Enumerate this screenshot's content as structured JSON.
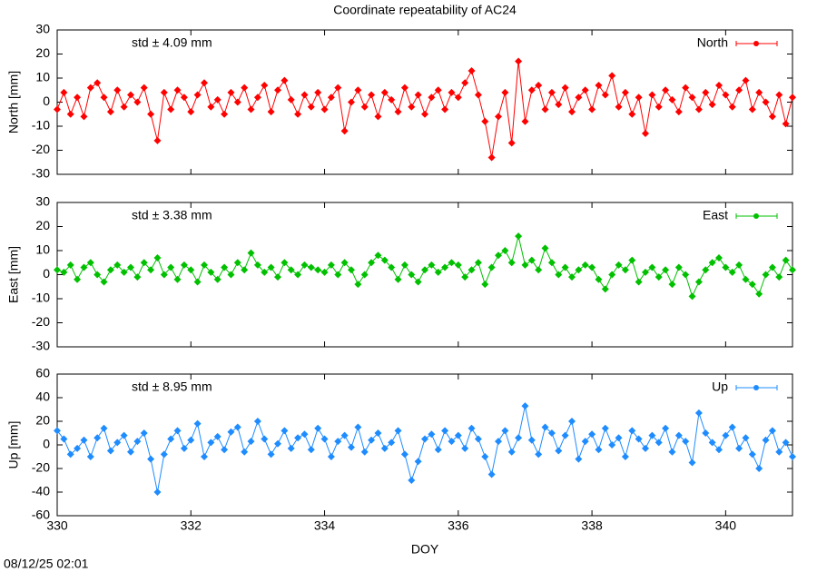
{
  "title": "Coordinate repeatability of AC24",
  "timestamp": "08/12/25 02:01",
  "chart_data": [
    {
      "type": "scatter",
      "ylabel": "North [mm]",
      "annotation": "std ± 4.09 mm",
      "color": "#ff0000",
      "xlim": [
        330,
        341
      ],
      "xticks": [
        330,
        332,
        334,
        336,
        338,
        340
      ],
      "ylim": [
        -30,
        30
      ],
      "yticks": [
        -30,
        -20,
        -10,
        0,
        10,
        20,
        30
      ],
      "legend": "top-right",
      "x": [
        330,
        330.1,
        330.2,
        330.3,
        330.4,
        330.5,
        330.6,
        330.7,
        330.8,
        330.9,
        331,
        331.1,
        331.2,
        331.3,
        331.4,
        331.5,
        331.6,
        331.7,
        331.8,
        331.9,
        332,
        332.1,
        332.2,
        332.3,
        332.4,
        332.5,
        332.6,
        332.7,
        332.8,
        332.9,
        333,
        333.1,
        333.2,
        333.3,
        333.4,
        333.5,
        333.6,
        333.7,
        333.8,
        333.9,
        334,
        334.1,
        334.2,
        334.3,
        334.4,
        334.5,
        334.6,
        334.7,
        334.8,
        334.9,
        335,
        335.1,
        335.2,
        335.3,
        335.4,
        335.5,
        335.6,
        335.7,
        335.8,
        335.9,
        336,
        336.1,
        336.2,
        336.3,
        336.4,
        336.5,
        336.6,
        336.7,
        336.8,
        336.9,
        337,
        337.1,
        337.2,
        337.3,
        337.4,
        337.5,
        337.6,
        337.7,
        337.8,
        337.9,
        338,
        338.1,
        338.2,
        338.3,
        338.4,
        338.5,
        338.6,
        338.7,
        338.8,
        338.9,
        339,
        339.1,
        339.2,
        339.3,
        339.4,
        339.5,
        339.6,
        339.7,
        339.8,
        339.9,
        340,
        340.1,
        340.2,
        340.3,
        340.4,
        340.5,
        340.6,
        340.7,
        340.8,
        340.9,
        341
      ],
      "series": [
        {
          "name": "North",
          "color": "#ff0000",
          "values": [
            -3,
            4,
            -5,
            2,
            -6,
            6,
            8,
            2,
            -4,
            5,
            -2,
            3,
            0,
            6,
            -5,
            -16,
            4,
            -3,
            5,
            2,
            -4,
            3,
            8,
            -2,
            1,
            -5,
            4,
            0,
            6,
            -3,
            2,
            7,
            -4,
            5,
            9,
            1,
            -5,
            3,
            -2,
            4,
            -3,
            2,
            6,
            -12,
            0,
            5,
            -2,
            3,
            -6,
            4,
            1,
            -4,
            6,
            -2,
            3,
            -5,
            2,
            5,
            -3,
            4,
            2,
            8,
            13,
            3,
            -8,
            -23,
            -6,
            4,
            -17,
            17,
            -8,
            5,
            7,
            -3,
            4,
            -1,
            6,
            -4,
            2,
            5,
            -3,
            7,
            3,
            11,
            -2,
            4,
            -5,
            2,
            -13,
            3,
            -2,
            5,
            1,
            -4,
            6,
            2,
            -3,
            4,
            -1,
            7,
            3,
            -2,
            5,
            9,
            -3,
            4,
            0,
            -6,
            3,
            -9,
            2
          ]
        }
      ]
    },
    {
      "type": "scatter",
      "ylabel": "East [mm]",
      "annotation": "std ± 3.38 mm",
      "color": "#00c000",
      "xlim": [
        330,
        341
      ],
      "xticks": [
        330,
        332,
        334,
        336,
        338,
        340
      ],
      "ylim": [
        -30,
        30
      ],
      "yticks": [
        -30,
        -20,
        -10,
        0,
        10,
        20,
        30
      ],
      "legend": "top-right",
      "x": [
        330,
        330.1,
        330.2,
        330.3,
        330.4,
        330.5,
        330.6,
        330.7,
        330.8,
        330.9,
        331,
        331.1,
        331.2,
        331.3,
        331.4,
        331.5,
        331.6,
        331.7,
        331.8,
        331.9,
        332,
        332.1,
        332.2,
        332.3,
        332.4,
        332.5,
        332.6,
        332.7,
        332.8,
        332.9,
        333,
        333.1,
        333.2,
        333.3,
        333.4,
        333.5,
        333.6,
        333.7,
        333.8,
        333.9,
        334,
        334.1,
        334.2,
        334.3,
        334.4,
        334.5,
        334.6,
        334.7,
        334.8,
        334.9,
        335,
        335.1,
        335.2,
        335.3,
        335.4,
        335.5,
        335.6,
        335.7,
        335.8,
        335.9,
        336,
        336.1,
        336.2,
        336.3,
        336.4,
        336.5,
        336.6,
        336.7,
        336.8,
        336.9,
        337,
        337.1,
        337.2,
        337.3,
        337.4,
        337.5,
        337.6,
        337.7,
        337.8,
        337.9,
        338,
        338.1,
        338.2,
        338.3,
        338.4,
        338.5,
        338.6,
        338.7,
        338.8,
        338.9,
        339,
        339.1,
        339.2,
        339.3,
        339.4,
        339.5,
        339.6,
        339.7,
        339.8,
        339.9,
        340,
        340.1,
        340.2,
        340.3,
        340.4,
        340.5,
        340.6,
        340.7,
        340.8,
        340.9,
        341
      ],
      "series": [
        {
          "name": "East",
          "color": "#00c000",
          "values": [
            2,
            1,
            4,
            -2,
            3,
            5,
            0,
            -3,
            2,
            4,
            1,
            3,
            -1,
            5,
            2,
            7,
            0,
            3,
            -2,
            4,
            2,
            -3,
            4,
            1,
            -2,
            3,
            0,
            5,
            2,
            9,
            4,
            1,
            3,
            -1,
            5,
            2,
            0,
            4,
            3,
            2,
            1,
            4,
            0,
            5,
            2,
            -4,
            0,
            5,
            8,
            6,
            3,
            -2,
            4,
            0,
            -3,
            2,
            4,
            1,
            3,
            5,
            4,
            -1,
            2,
            5,
            -4,
            3,
            8,
            10,
            5,
            16,
            4,
            6,
            2,
            11,
            5,
            0,
            3,
            -1,
            2,
            4,
            3,
            -2,
            -6,
            0,
            4,
            2,
            6,
            -3,
            1,
            3,
            -1,
            2,
            -4,
            3,
            0,
            -9,
            -3,
            2,
            5,
            7,
            3,
            1,
            4,
            -2,
            -4,
            -8,
            0,
            3,
            -1,
            6,
            2
          ]
        }
      ]
    },
    {
      "type": "scatter",
      "ylabel": "Up [mm]",
      "xlabel": "DOY",
      "annotation": "std ± 8.95 mm",
      "color": "#1e8cff",
      "xlim": [
        330,
        341
      ],
      "xticks": [
        330,
        332,
        334,
        336,
        338,
        340
      ],
      "ylim": [
        -60,
        60
      ],
      "yticks": [
        -60,
        -40,
        -20,
        0,
        20,
        40,
        60
      ],
      "legend": "top-right",
      "x": [
        330,
        330.1,
        330.2,
        330.3,
        330.4,
        330.5,
        330.6,
        330.7,
        330.8,
        330.9,
        331,
        331.1,
        331.2,
        331.3,
        331.4,
        331.5,
        331.6,
        331.7,
        331.8,
        331.9,
        332,
        332.1,
        332.2,
        332.3,
        332.4,
        332.5,
        332.6,
        332.7,
        332.8,
        332.9,
        333,
        333.1,
        333.2,
        333.3,
        333.4,
        333.5,
        333.6,
        333.7,
        333.8,
        333.9,
        334,
        334.1,
        334.2,
        334.3,
        334.4,
        334.5,
        334.6,
        334.7,
        334.8,
        334.9,
        335,
        335.1,
        335.2,
        335.3,
        335.4,
        335.5,
        335.6,
        335.7,
        335.8,
        335.9,
        336,
        336.1,
        336.2,
        336.3,
        336.4,
        336.5,
        336.6,
        336.7,
        336.8,
        336.9,
        337,
        337.1,
        337.2,
        337.3,
        337.4,
        337.5,
        337.6,
        337.7,
        337.8,
        337.9,
        338,
        338.1,
        338.2,
        338.3,
        338.4,
        338.5,
        338.6,
        338.7,
        338.8,
        338.9,
        339,
        339.1,
        339.2,
        339.3,
        339.4,
        339.5,
        339.6,
        339.7,
        339.8,
        339.9,
        340,
        340.1,
        340.2,
        340.3,
        340.4,
        340.5,
        340.6,
        340.7,
        340.8,
        340.9,
        341
      ],
      "series": [
        {
          "name": "Up",
          "color": "#1e8cff",
          "values": [
            12,
            5,
            -8,
            -3,
            4,
            -10,
            6,
            14,
            -5,
            2,
            8,
            -6,
            3,
            10,
            -12,
            -40,
            -8,
            5,
            12,
            -3,
            4,
            18,
            -10,
            2,
            7,
            -4,
            11,
            15,
            -6,
            3,
            20,
            5,
            -8,
            1,
            12,
            -3,
            6,
            9,
            -4,
            14,
            5,
            -10,
            3,
            8,
            -2,
            15,
            -6,
            4,
            10,
            -3,
            2,
            12,
            -8,
            -30,
            -14,
            5,
            9,
            -4,
            12,
            3,
            8,
            -3,
            14,
            5,
            -10,
            -25,
            3,
            12,
            -6,
            6,
            33,
            4,
            -8,
            15,
            10,
            -5,
            8,
            20,
            -12,
            3,
            9,
            -4,
            14,
            0,
            6,
            -10,
            12,
            5,
            -3,
            8,
            2,
            14,
            -6,
            8,
            3,
            -15,
            27,
            10,
            2,
            -4,
            8,
            15,
            -3,
            6,
            -8,
            -20,
            4,
            12,
            -6,
            2,
            -10
          ]
        }
      ]
    }
  ]
}
